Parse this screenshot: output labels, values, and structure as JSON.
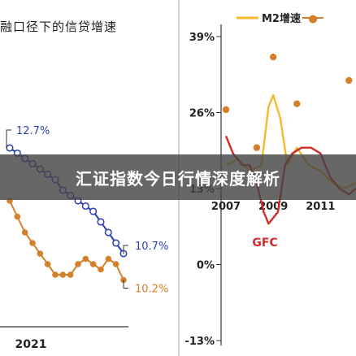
{
  "banner": {
    "headline": "汇证指数今日行情深度解析"
  },
  "chart_data": [
    {
      "type": "line",
      "title": "融口径下的信贷增速",
      "xlabel": "",
      "ylabel": "",
      "x_tick_labels": [
        "2021"
      ],
      "series": [
        {
          "color": "#2e3fb5",
          "marker": "open-circle",
          "start_label": "12.7%",
          "end_label": "10.7%",
          "values": [
            12.7,
            12.6,
            12.5,
            12.4,
            12.3,
            12.2,
            12.1,
            11.9,
            11.8,
            11.7,
            11.6,
            11.5,
            11.3,
            11.1,
            10.9,
            10.7
          ]
        },
        {
          "color": "#d4802a",
          "marker": "filled-circle",
          "end_label": "10.2%",
          "values": [
            11.7,
            11.4,
            11.1,
            10.9,
            10.7,
            10.5,
            10.3,
            10.3,
            10.3,
            10.5,
            10.6,
            10.5,
            10.4,
            10.6,
            10.5,
            10.2
          ]
        }
      ]
    },
    {
      "type": "line",
      "title": "",
      "xlabel": "",
      "ylabel": "",
      "y_tick_labels": [
        "39%",
        "26%",
        "13%",
        "0%",
        "-13%"
      ],
      "ylim": [
        -13,
        39
      ],
      "x_tick_labels": [
        "2007",
        "2009",
        "2011"
      ],
      "xlim": [
        2007,
        2012.5
      ],
      "annotation": "GFC",
      "legend": [
        "M2增速",
        "●"
      ],
      "legend_placement": "top",
      "series": [
        {
          "name": "M2增速",
          "color": "#f5b82e",
          "x": [
            2007.0,
            2007.5,
            2008.0,
            2008.5,
            2008.8,
            2009.0,
            2009.3,
            2009.6,
            2010.0,
            2010.5,
            2011.0,
            2011.5,
            2012.0,
            2012.5
          ],
          "values": [
            17,
            18,
            16,
            17,
            27,
            29,
            25,
            17,
            20,
            17,
            16,
            14,
            13,
            14
          ]
        },
        {
          "color": "#d42a2a",
          "x": [
            2007.0,
            2007.3,
            2007.7,
            2008.0,
            2008.3,
            2008.6,
            2008.8,
            2009.2,
            2009.5,
            2009.8,
            2010.2,
            2010.6,
            2011.0,
            2011.4,
            2011.8,
            2012.2,
            2012.5
          ],
          "values": [
            22,
            19,
            17,
            17,
            14,
            9,
            7,
            9,
            17,
            19,
            20,
            20,
            19,
            15,
            13,
            12,
            13
          ]
        },
        {
          "color": "#d4802a",
          "marker": "dot-only",
          "x": [
            2007.0,
            2008.3,
            2009.0,
            2010.0,
            2012.2
          ],
          "values": [
            26.5,
            20,
            35.5,
            27.5,
            31.5
          ]
        }
      ]
    }
  ]
}
